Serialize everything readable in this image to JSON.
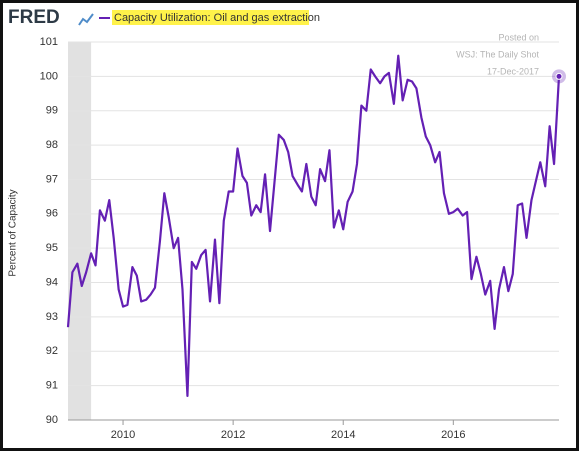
{
  "chart_data": {
    "type": "line",
    "logo": "FRED",
    "title": "Capacity Utilization: Oil and gas extraction",
    "watermark": [
      "Posted on",
      "WSJ: The Daily Shot",
      "17-Dec-2017"
    ],
    "y_label": "Percent of Capacity",
    "recession": [
      2009,
      2009.42
    ],
    "x": [
      2009,
      2009.08,
      2009.17,
      2009.25,
      2009.33,
      2009.42,
      2009.5,
      2009.58,
      2009.67,
      2009.75,
      2009.83,
      2009.92,
      2010,
      2010.08,
      2010.17,
      2010.25,
      2010.33,
      2010.42,
      2010.5,
      2010.58,
      2010.67,
      2010.75,
      2010.83,
      2010.92,
      2011,
      2011.08,
      2011.17,
      2011.25,
      2011.33,
      2011.42,
      2011.5,
      2011.58,
      2011.67,
      2011.75,
      2011.83,
      2011.92,
      2012,
      2012.08,
      2012.17,
      2012.25,
      2012.33,
      2012.42,
      2012.5,
      2012.58,
      2012.67,
      2012.75,
      2012.83,
      2012.92,
      2013,
      2013.08,
      2013.17,
      2013.25,
      2013.33,
      2013.42,
      2013.5,
      2013.58,
      2013.67,
      2013.75,
      2013.83,
      2013.92,
      2014,
      2014.08,
      2014.17,
      2014.25,
      2014.33,
      2014.42,
      2014.5,
      2014.58,
      2014.67,
      2014.75,
      2014.83,
      2014.92,
      2015,
      2015.08,
      2015.17,
      2015.25,
      2015.33,
      2015.42,
      2015.5,
      2015.58,
      2015.67,
      2015.75,
      2015.83,
      2015.92,
      2016,
      2016.08,
      2016.17,
      2016.25,
      2016.33,
      2016.42,
      2016.5,
      2016.58,
      2016.67,
      2016.75,
      2016.83,
      2016.92,
      2017,
      2017.08,
      2017.17,
      2017.25,
      2017.33,
      2017.42,
      2017.5,
      2017.58,
      2017.67,
      2017.75,
      2017.83,
      2017.92
    ],
    "series": [
      {
        "name": "Capacity Utilization: Oil and gas extraction",
        "color": "#6420b4",
        "values": [
          92.7,
          94.3,
          94.55,
          93.9,
          94.3,
          94.85,
          94.5,
          96.1,
          95.8,
          96.4,
          95.3,
          93.8,
          93.3,
          93.35,
          94.45,
          94.2,
          93.45,
          93.5,
          93.65,
          93.85,
          95.2,
          96.6,
          95.9,
          95.0,
          95.3,
          93.8,
          90.7,
          94.6,
          94.4,
          94.8,
          94.95,
          93.45,
          95.25,
          93.4,
          95.8,
          96.65,
          96.65,
          97.9,
          97.1,
          96.9,
          95.95,
          96.25,
          96.05,
          97.15,
          95.5,
          96.9,
          98.3,
          98.15,
          97.8,
          97.1,
          96.85,
          96.65,
          97.45,
          96.5,
          96.25,
          97.3,
          96.95,
          97.85,
          95.6,
          96.1,
          95.55,
          96.35,
          96.65,
          97.45,
          99.15,
          99.0,
          100.2,
          100.0,
          99.8,
          100.0,
          100.1,
          99.2,
          100.6,
          99.3,
          99.9,
          99.85,
          99.65,
          98.8,
          98.25,
          98.0,
          97.5,
          97.8,
          96.6,
          96.0,
          96.05,
          96.15,
          95.95,
          96.05,
          94.1,
          94.75,
          94.25,
          93.65,
          94.05,
          92.65,
          93.8,
          94.45,
          93.75,
          94.25,
          96.25,
          96.3,
          95.3,
          96.4,
          96.95,
          97.5,
          96.8,
          98.55,
          97.45,
          100.0
        ]
      }
    ],
    "xlim": [
      2009,
      2017.92
    ],
    "xticks": [
      2010,
      2012,
      2014,
      2016
    ],
    "ylim": [
      90,
      101
    ],
    "yticks": [
      90,
      91,
      92,
      93,
      94,
      95,
      96,
      97,
      98,
      99,
      100,
      101
    ],
    "grid": true
  }
}
